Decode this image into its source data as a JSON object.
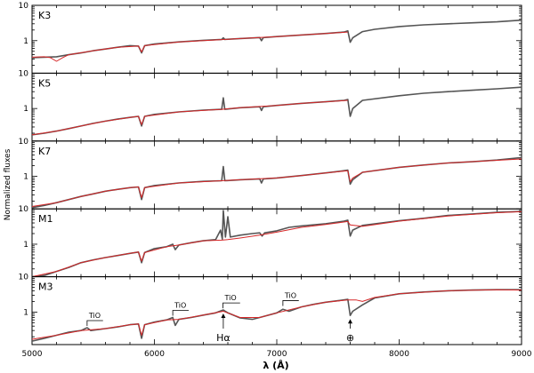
{
  "chart_data": {
    "type": "line",
    "xlabel": "λ (Å)",
    "ylabel": "Normalized fluxes",
    "xlim": [
      5000,
      9000
    ],
    "ylim": [
      0.12,
      10
    ],
    "yscale": "log",
    "x_ticks": [
      5000,
      6000,
      7000,
      8000,
      9000
    ],
    "y_ticks": [
      1,
      10
    ],
    "series_colors": {
      "observed": "#555555",
      "model": "#d62728"
    },
    "panels": [
      {
        "label": "K3",
        "observed": [
          [
            5000,
            0.33
          ],
          [
            5100,
            0.34
          ],
          [
            5200,
            0.35
          ],
          [
            5300,
            0.4
          ],
          [
            5400,
            0.45
          ],
          [
            5500,
            0.52
          ],
          [
            5600,
            0.58
          ],
          [
            5700,
            0.65
          ],
          [
            5800,
            0.72
          ],
          [
            5870,
            0.7
          ],
          [
            5895,
            0.45
          ],
          [
            5920,
            0.72
          ],
          [
            6000,
            0.8
          ],
          [
            6200,
            0.92
          ],
          [
            6400,
            1.02
          ],
          [
            6550,
            1.08
          ],
          [
            6563,
            1.2
          ],
          [
            6575,
            1.08
          ],
          [
            6700,
            1.15
          ],
          [
            6860,
            1.22
          ],
          [
            6875,
            1.0
          ],
          [
            6890,
            1.22
          ],
          [
            7000,
            1.3
          ],
          [
            7200,
            1.45
          ],
          [
            7400,
            1.6
          ],
          [
            7550,
            1.75
          ],
          [
            7580,
            1.9
          ],
          [
            7600,
            0.9
          ],
          [
            7620,
            1.2
          ],
          [
            7700,
            1.8
          ],
          [
            7800,
            2.1
          ],
          [
            8000,
            2.5
          ],
          [
            8200,
            2.8
          ],
          [
            8400,
            3.0
          ],
          [
            8600,
            3.2
          ],
          [
            8800,
            3.4
          ],
          [
            9000,
            3.8
          ]
        ],
        "model": [
          [
            5000,
            0.34
          ],
          [
            5100,
            0.35
          ],
          [
            5150,
            0.33
          ],
          [
            5200,
            0.26
          ],
          [
            5250,
            0.33
          ],
          [
            5300,
            0.4
          ],
          [
            5500,
            0.52
          ],
          [
            5700,
            0.65
          ],
          [
            5870,
            0.7
          ],
          [
            5895,
            0.48
          ],
          [
            5920,
            0.72
          ],
          [
            6200,
            0.92
          ],
          [
            6550,
            1.07
          ],
          [
            6700,
            1.15
          ],
          [
            7000,
            1.3
          ],
          [
            7200,
            1.45
          ],
          [
            7400,
            1.6
          ],
          [
            7580,
            1.75
          ]
        ]
      },
      {
        "label": "K5",
        "observed": [
          [
            5000,
            0.18
          ],
          [
            5100,
            0.2
          ],
          [
            5200,
            0.23
          ],
          [
            5300,
            0.27
          ],
          [
            5400,
            0.32
          ],
          [
            5500,
            0.38
          ],
          [
            5600,
            0.44
          ],
          [
            5700,
            0.5
          ],
          [
            5800,
            0.56
          ],
          [
            5870,
            0.6
          ],
          [
            5895,
            0.32
          ],
          [
            5920,
            0.6
          ],
          [
            6000,
            0.68
          ],
          [
            6200,
            0.8
          ],
          [
            6400,
            0.9
          ],
          [
            6550,
            0.95
          ],
          [
            6563,
            2.0
          ],
          [
            6575,
            0.95
          ],
          [
            6700,
            1.05
          ],
          [
            6860,
            1.12
          ],
          [
            6875,
            0.88
          ],
          [
            6890,
            1.12
          ],
          [
            7000,
            1.22
          ],
          [
            7200,
            1.4
          ],
          [
            7400,
            1.55
          ],
          [
            7550,
            1.7
          ],
          [
            7580,
            1.8
          ],
          [
            7600,
            0.6
          ],
          [
            7620,
            1.0
          ],
          [
            7700,
            1.7
          ],
          [
            8000,
            2.3
          ],
          [
            8200,
            2.7
          ],
          [
            8400,
            3.0
          ],
          [
            8600,
            3.3
          ],
          [
            8800,
            3.6
          ],
          [
            9000,
            4.0
          ]
        ],
        "model": [
          [
            5000,
            0.18
          ],
          [
            5200,
            0.23
          ],
          [
            5400,
            0.32
          ],
          [
            5600,
            0.44
          ],
          [
            5800,
            0.56
          ],
          [
            5870,
            0.6
          ],
          [
            5895,
            0.35
          ],
          [
            5920,
            0.6
          ],
          [
            6200,
            0.8
          ],
          [
            6550,
            0.95
          ],
          [
            6700,
            1.05
          ],
          [
            7000,
            1.22
          ],
          [
            7200,
            1.4
          ],
          [
            7400,
            1.55
          ],
          [
            7580,
            1.7
          ]
        ]
      },
      {
        "label": "K7",
        "observed": [
          [
            5000,
            0.13
          ],
          [
            5100,
            0.15
          ],
          [
            5200,
            0.18
          ],
          [
            5300,
            0.22
          ],
          [
            5400,
            0.27
          ],
          [
            5500,
            0.32
          ],
          [
            5600,
            0.38
          ],
          [
            5700,
            0.43
          ],
          [
            5800,
            0.48
          ],
          [
            5870,
            0.5
          ],
          [
            5895,
            0.22
          ],
          [
            5920,
            0.48
          ],
          [
            6000,
            0.55
          ],
          [
            6200,
            0.65
          ],
          [
            6400,
            0.72
          ],
          [
            6550,
            0.75
          ],
          [
            6563,
            1.9
          ],
          [
            6575,
            0.75
          ],
          [
            6700,
            0.8
          ],
          [
            6860,
            0.85
          ],
          [
            6875,
            0.65
          ],
          [
            6890,
            0.85
          ],
          [
            7000,
            0.9
          ],
          [
            7200,
            1.05
          ],
          [
            7400,
            1.25
          ],
          [
            7550,
            1.45
          ],
          [
            7580,
            1.5
          ],
          [
            7600,
            0.6
          ],
          [
            7620,
            0.8
          ],
          [
            7700,
            1.3
          ],
          [
            8000,
            1.8
          ],
          [
            8200,
            2.1
          ],
          [
            8400,
            2.4
          ],
          [
            8600,
            2.6
          ],
          [
            8800,
            2.9
          ],
          [
            9000,
            3.4
          ]
        ],
        "model": [
          [
            5000,
            0.14
          ],
          [
            5200,
            0.18
          ],
          [
            5400,
            0.27
          ],
          [
            5600,
            0.38
          ],
          [
            5800,
            0.48
          ],
          [
            5870,
            0.5
          ],
          [
            5895,
            0.25
          ],
          [
            5920,
            0.48
          ],
          [
            6200,
            0.65
          ],
          [
            6550,
            0.75
          ],
          [
            6700,
            0.8
          ],
          [
            7000,
            0.9
          ],
          [
            7200,
            1.05
          ],
          [
            7400,
            1.25
          ],
          [
            7580,
            1.45
          ],
          [
            7600,
            0.7
          ],
          [
            7620,
            0.9
          ],
          [
            7700,
            1.3
          ],
          [
            8000,
            1.8
          ],
          [
            8400,
            2.4
          ],
          [
            8800,
            2.85
          ],
          [
            9000,
            3.1
          ]
        ]
      },
      {
        "label": "M1",
        "observed": [
          [
            5000,
            0.1
          ],
          [
            5100,
            0.13
          ],
          [
            5200,
            0.17
          ],
          [
            5300,
            0.22
          ],
          [
            5400,
            0.3
          ],
          [
            5500,
            0.36
          ],
          [
            5600,
            0.42
          ],
          [
            5700,
            0.48
          ],
          [
            5800,
            0.55
          ],
          [
            5870,
            0.6
          ],
          [
            5895,
            0.3
          ],
          [
            5920,
            0.58
          ],
          [
            6000,
            0.75
          ],
          [
            6100,
            0.85
          ],
          [
            6150,
            1.0
          ],
          [
            6170,
            0.7
          ],
          [
            6200,
            0.95
          ],
          [
            6300,
            1.1
          ],
          [
            6400,
            1.25
          ],
          [
            6500,
            1.35
          ],
          [
            6540,
            2.5
          ],
          [
            6555,
            1.4
          ],
          [
            6563,
            9.0
          ],
          [
            6580,
            1.6
          ],
          [
            6600,
            6.0
          ],
          [
            6620,
            1.6
          ],
          [
            6700,
            1.8
          ],
          [
            6800,
            2.0
          ],
          [
            6860,
            2.1
          ],
          [
            6880,
            1.7
          ],
          [
            6900,
            2.1
          ],
          [
            7000,
            2.4
          ],
          [
            7100,
            3.0
          ],
          [
            7200,
            3.3
          ],
          [
            7400,
            3.8
          ],
          [
            7550,
            4.5
          ],
          [
            7580,
            4.8
          ],
          [
            7600,
            1.7
          ],
          [
            7620,
            2.5
          ],
          [
            7700,
            3.4
          ],
          [
            8000,
            4.6
          ],
          [
            8200,
            5.4
          ],
          [
            8400,
            6.5
          ],
          [
            8600,
            7.2
          ],
          [
            8800,
            8.0
          ],
          [
            9000,
            8.5
          ]
        ],
        "model": [
          [
            5000,
            0.12
          ],
          [
            5200,
            0.17
          ],
          [
            5400,
            0.3
          ],
          [
            5600,
            0.42
          ],
          [
            5800,
            0.55
          ],
          [
            5870,
            0.6
          ],
          [
            5895,
            0.33
          ],
          [
            5920,
            0.58
          ],
          [
            6100,
            0.85
          ],
          [
            6200,
            0.95
          ],
          [
            6400,
            1.25
          ],
          [
            6550,
            1.3
          ],
          [
            6600,
            1.35
          ],
          [
            6700,
            1.5
          ],
          [
            6860,
            1.8
          ],
          [
            7000,
            2.2
          ],
          [
            7200,
            3.0
          ],
          [
            7400,
            3.6
          ],
          [
            7580,
            4.4
          ],
          [
            7600,
            3.5
          ],
          [
            7700,
            3.2
          ],
          [
            8000,
            4.5
          ],
          [
            8400,
            6.3
          ],
          [
            8800,
            7.8
          ],
          [
            9000,
            8.3
          ]
        ]
      },
      {
        "label": "M3",
        "observed": [
          [
            5000,
            0.15
          ],
          [
            5100,
            0.18
          ],
          [
            5200,
            0.22
          ],
          [
            5300,
            0.27
          ],
          [
            5400,
            0.3
          ],
          [
            5450,
            0.36
          ],
          [
            5480,
            0.3
          ],
          [
            5600,
            0.34
          ],
          [
            5700,
            0.38
          ],
          [
            5800,
            0.44
          ],
          [
            5870,
            0.46
          ],
          [
            5895,
            0.18
          ],
          [
            5920,
            0.44
          ],
          [
            6000,
            0.52
          ],
          [
            6100,
            0.6
          ],
          [
            6150,
            0.7
          ],
          [
            6170,
            0.42
          ],
          [
            6200,
            0.62
          ],
          [
            6300,
            0.7
          ],
          [
            6400,
            0.82
          ],
          [
            6500,
            0.95
          ],
          [
            6563,
            1.15
          ],
          [
            6600,
            0.95
          ],
          [
            6700,
            0.68
          ],
          [
            6800,
            0.62
          ],
          [
            6860,
            0.7
          ],
          [
            7000,
            0.95
          ],
          [
            7050,
            1.2
          ],
          [
            7100,
            1.05
          ],
          [
            7200,
            1.4
          ],
          [
            7300,
            1.65
          ],
          [
            7400,
            1.9
          ],
          [
            7500,
            2.1
          ],
          [
            7580,
            2.3
          ],
          [
            7600,
            0.8
          ],
          [
            7620,
            1.05
          ],
          [
            7700,
            1.6
          ],
          [
            7800,
            2.5
          ],
          [
            8000,
            3.3
          ],
          [
            8200,
            3.7
          ],
          [
            8400,
            4.0
          ],
          [
            8600,
            4.2
          ],
          [
            8800,
            4.3
          ],
          [
            9000,
            4.3
          ]
        ],
        "model": [
          [
            5000,
            0.17
          ],
          [
            5200,
            0.22
          ],
          [
            5400,
            0.3
          ],
          [
            5600,
            0.34
          ],
          [
            5800,
            0.44
          ],
          [
            5870,
            0.46
          ],
          [
            5895,
            0.22
          ],
          [
            5920,
            0.44
          ],
          [
            6100,
            0.6
          ],
          [
            6200,
            0.62
          ],
          [
            6400,
            0.82
          ],
          [
            6563,
            1.05
          ],
          [
            6700,
            0.7
          ],
          [
            6860,
            0.7
          ],
          [
            7000,
            0.95
          ],
          [
            7200,
            1.4
          ],
          [
            7400,
            1.9
          ],
          [
            7580,
            2.2
          ],
          [
            7650,
            2.2
          ],
          [
            7700,
            2.0
          ],
          [
            7800,
            2.6
          ],
          [
            8000,
            3.3
          ],
          [
            8400,
            4.0
          ],
          [
            8800,
            4.3
          ],
          [
            9000,
            4.2
          ]
        ]
      }
    ],
    "annotations": {
      "tio_bands": [
        {
          "label": "TiO",
          "x_start": 5450,
          "x_end": 5580
        },
        {
          "label": "TiO",
          "x_start": 6150,
          "x_end": 6280
        },
        {
          "label": "TiO",
          "x_start": 6560,
          "x_end": 6700
        },
        {
          "label": "TiO",
          "x_start": 7050,
          "x_end": 7180
        }
      ],
      "markers": [
        {
          "label": "Hα",
          "x": 6563
        },
        {
          "label": "⊕",
          "x": 7600
        }
      ]
    }
  }
}
